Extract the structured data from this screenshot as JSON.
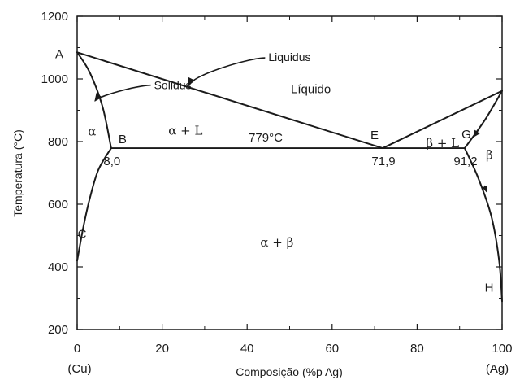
{
  "chart_data": {
    "type": "phase-diagram",
    "xlabel": "Composição (%p Ag)",
    "ylabel": "Temperatura (°C)",
    "xlim": [
      0,
      100
    ],
    "ylim": [
      200,
      1200
    ],
    "x_ticks": [
      "0",
      "20",
      "40",
      "60",
      "80",
      "100"
    ],
    "y_ticks": [
      "200",
      "400",
      "600",
      "800",
      "1000",
      "1200"
    ],
    "x_end_labels": {
      "left": "(Cu)",
      "right": "(Ag)"
    },
    "points": [
      {
        "id": "A",
        "label": "A",
        "x": 0,
        "y": 1085
      },
      {
        "id": "B",
        "label": "B",
        "x": 8.0,
        "y": 779
      },
      {
        "id": "C",
        "label": "C",
        "x": 0,
        "y": 420
      },
      {
        "id": "E",
        "label": "E",
        "x": 71.9,
        "y": 779
      },
      {
        "id": "G",
        "label": "G",
        "x": 91.2,
        "y": 779
      },
      {
        "id": "H",
        "label": "H",
        "x": 100,
        "y": 290
      },
      {
        "id": "F",
        "label": "",
        "x": 100,
        "y": 962
      }
    ],
    "composition_labels": [
      {
        "text": "8,0",
        "x": 8.0
      },
      {
        "text": "71,9",
        "x": 71.9
      },
      {
        "text": "91,2",
        "x": 91.2
      }
    ],
    "eutectic_temperature_label": "779°C",
    "regions": [
      {
        "text": "Líquido",
        "x": 55,
        "y": 955
      },
      {
        "text": "α",
        "x": 3.5,
        "y": 820
      },
      {
        "text": "α + L",
        "x": 25.5,
        "y": 822
      },
      {
        "text": "β + L",
        "x": 86,
        "y": 782
      },
      {
        "text": "β",
        "x": 97,
        "y": 744
      },
      {
        "text": "α +  β",
        "x": 47,
        "y": 465
      }
    ],
    "annotations": [
      {
        "text": "Liquidus",
        "x": 45,
        "y": 1057
      },
      {
        "text": "Solidus",
        "x": 20,
        "y": 967
      }
    ],
    "curves": {
      "liquidus": [
        [
          0,
          1085
        ],
        [
          71.9,
          779
        ],
        [
          100,
          962
        ]
      ],
      "solidus_alpha": [
        [
          0,
          1085
        ],
        [
          3,
          1020
        ],
        [
          6,
          910
        ],
        [
          8.0,
          779
        ]
      ],
      "solvus_alpha": [
        [
          8.0,
          779
        ],
        [
          5,
          710
        ],
        [
          3,
          620
        ],
        [
          1.5,
          530
        ],
        [
          0,
          420
        ]
      ],
      "eutectic_isotherm": [
        [
          8.0,
          779
        ],
        [
          91.2,
          779
        ]
      ],
      "solidus_beta": [
        [
          91.2,
          779
        ],
        [
          96,
          870
        ],
        [
          100,
          962
        ]
      ],
      "solvus_beta": [
        [
          91.2,
          779
        ],
        [
          94.5,
          680
        ],
        [
          97.5,
          560
        ],
        [
          99.3,
          420
        ],
        [
          100,
          290
        ]
      ]
    }
  }
}
